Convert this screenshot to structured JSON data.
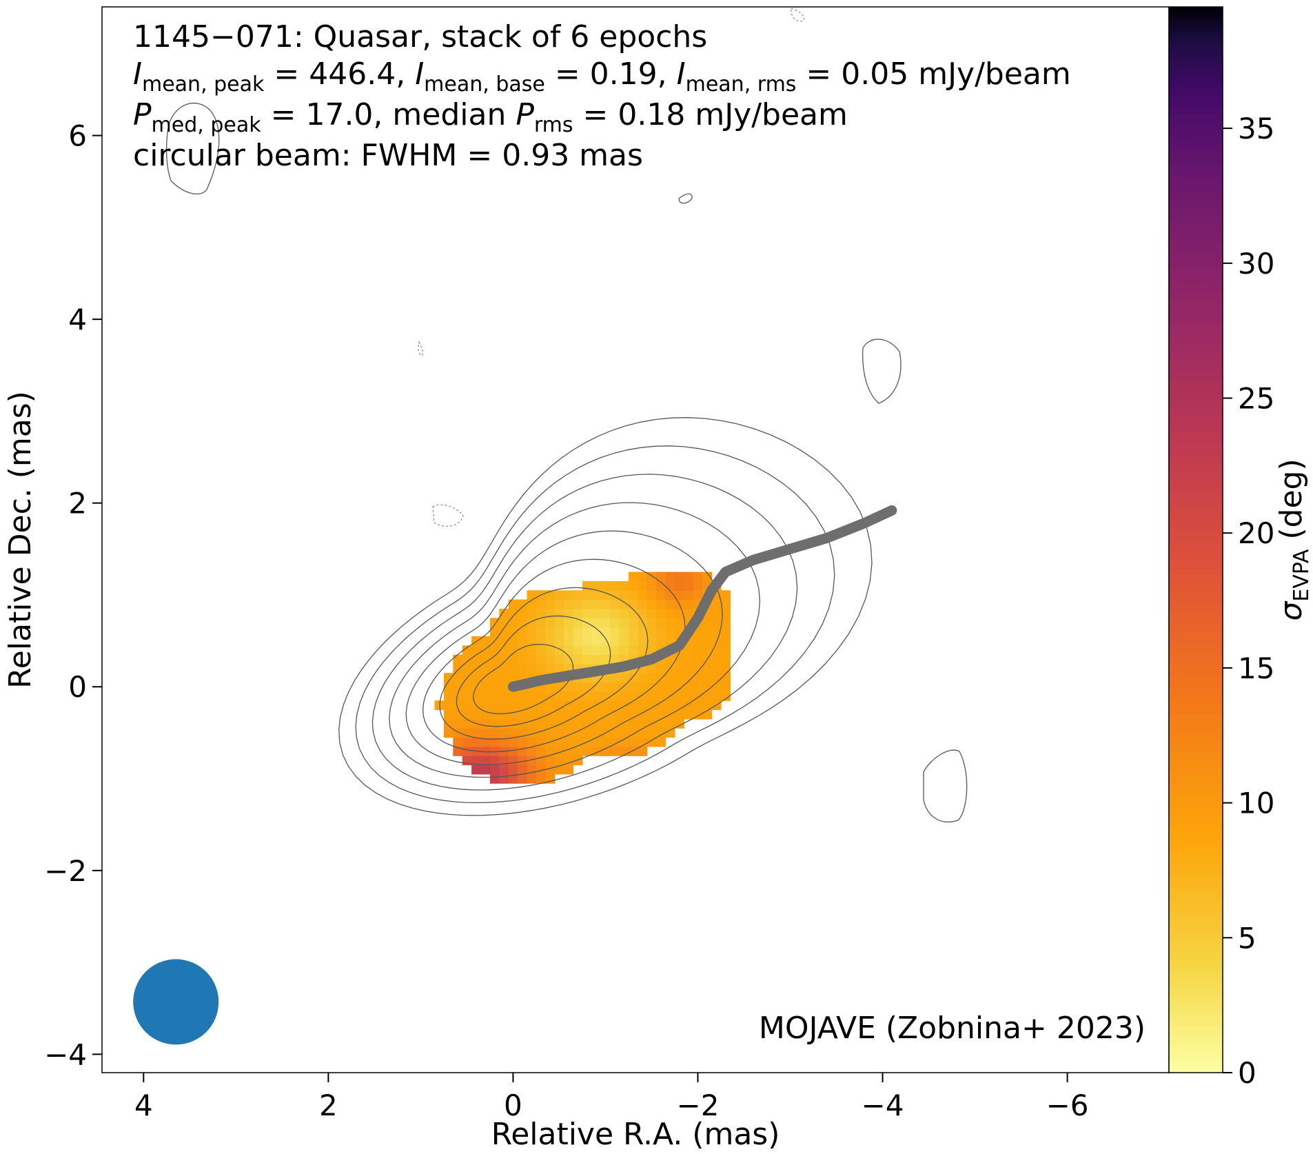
{
  "chart_data": {
    "type": "heatmap",
    "subtitle_lines": [
      "1145−071: Quasar, stack of 6 epochs",
      "I_mean,peak = 446.4, I_mean,base = 0.19, I_mean,rms = 0.05 mJy/beam",
      "P_med,peak = 17.0, median P_rms = 0.18 mJy/beam",
      "circular beam: FWHM = 0.93 mas"
    ],
    "annotations": {
      "line1": "1145−071: Quasar, stack of 6 epochs",
      "line2": {
        "i1": "I",
        "s1": "mean, peak",
        "t1": " = 446.4, ",
        "i2": "I",
        "s2": "mean, base",
        "t2": " = 0.19, ",
        "i3": "I",
        "s3": "mean, rms",
        "t3": " = 0.05 mJy/beam"
      },
      "line3": {
        "i1": "P",
        "s1": "med, peak",
        "t1": " = 17.0, median ",
        "i2": "P",
        "s2": "rms",
        "t2": " = 0.18 mJy/beam"
      },
      "line4": "circular beam: FWHM = 0.93 mas",
      "credit": "MOJAVE (Zobnina+ 2023)"
    },
    "xlabel": "Relative R.A. (mas)",
    "ylabel": "Relative Dec. (mas)",
    "xlim": [
      4.45,
      -7.1
    ],
    "ylim": [
      -4.2,
      7.4
    ],
    "x_ticks": [
      4,
      2,
      0,
      -2,
      -4,
      -6
    ],
    "x_tick_labels": [
      "4",
      "2",
      "0",
      "−2",
      "−4",
      "−6"
    ],
    "y_ticks": [
      -4,
      -2,
      0,
      2,
      4,
      6
    ],
    "y_tick_labels": [
      "−4",
      "−2",
      "0",
      "2",
      "4",
      "6"
    ],
    "colorbar": {
      "label_symbol": "σ",
      "label_sub": "EVPA",
      "label_unit": " (deg)",
      "min": 0,
      "max": 39.5,
      "ticks": [
        0,
        5,
        10,
        15,
        20,
        25,
        30,
        35
      ],
      "tick_labels": [
        "0",
        "5",
        "10",
        "15",
        "20",
        "25",
        "30",
        "35"
      ],
      "colormap": "inferno_r"
    },
    "ridgeline": {
      "color": "#6e6e6e",
      "points": [
        [
          0,
          0
        ],
        [
          -0.3,
          0.07
        ],
        [
          -0.6,
          0.12
        ],
        [
          -0.9,
          0.17
        ],
        [
          -1.2,
          0.22
        ],
        [
          -1.5,
          0.3
        ],
        [
          -1.8,
          0.45
        ],
        [
          -2.0,
          0.75
        ],
        [
          -2.15,
          1.05
        ],
        [
          -2.3,
          1.25
        ],
        [
          -2.6,
          1.38
        ],
        [
          -3.0,
          1.5
        ],
        [
          -3.4,
          1.62
        ],
        [
          -3.8,
          1.78
        ],
        [
          -4.1,
          1.92
        ]
      ]
    },
    "beam": {
      "ra": 3.65,
      "dec": -3.43,
      "fwhm_mas": 0.93,
      "color": "#1f77b4"
    },
    "contour_levels": 9,
    "grid": false
  }
}
